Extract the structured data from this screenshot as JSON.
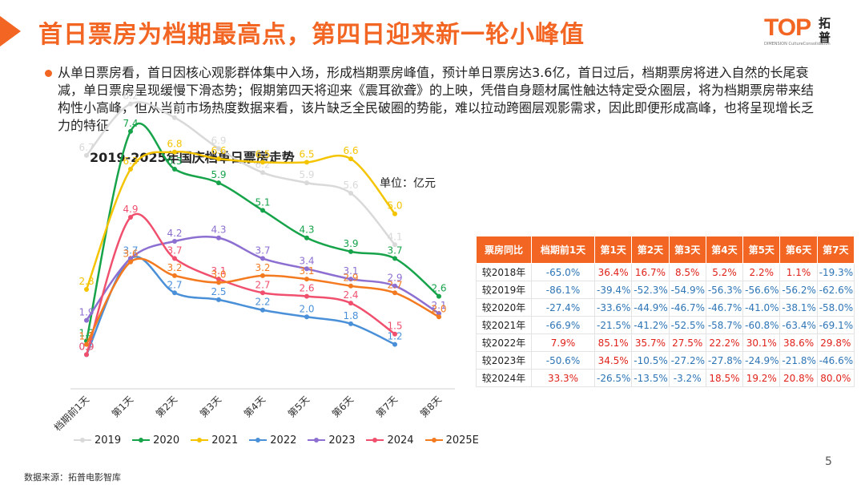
{
  "header": {
    "title": "首日票房为档期最高点，第四日迎来新一轮小峰值",
    "logo_text": "TOP",
    "logo_cn": "拓普",
    "logo_sub": "DIMENSION CultureConsolidation"
  },
  "summary": {
    "text": "从单日票房看，首日因核心观影群体集中入场，形成档期票房峰值，预计单日票房达3.6亿，首日过后，档期票房将进入自然的长尾衰减，单日票房呈现缓慢下滑态势；假期第四天将迎来《震耳欲聋》的上映，凭借自身题材属性触达特定受众圈层，将为档期票房带来结构性小高峰，但从当前市场热度数据来看，该片缺乏全民破圈的势能，难以拉动跨圈层观影需求，因此即便形成高峰，也将呈现增长乏力的特征"
  },
  "chart_data": {
    "type": "line",
    "title": "2019-2025年国庆档单日票房走势",
    "unit": "单位：亿元",
    "ylim": [
      0,
      9
    ],
    "grid": false,
    "legend_position": "bottom",
    "categories": [
      "档期前1天",
      "第1天",
      "第2天",
      "第3天",
      "第4天",
      "第5天",
      "第6天",
      "第7天",
      "第8天"
    ],
    "series": [
      {
        "name": "2019",
        "color": "#d9d9d9",
        "values": [
          6.7,
          8.2,
          7.8,
          6.9,
          6.2,
          5.9,
          5.6,
          4.1,
          null
        ],
        "labels": [
          "6.7",
          "8.2",
          "7.8",
          "6.9",
          "6.2",
          "5.9",
          "5.6",
          "4.1",
          ""
        ]
      },
      {
        "name": "2020",
        "color": "#16a34a",
        "values": [
          1.3,
          7.4,
          6.3,
          5.9,
          5.1,
          4.3,
          3.9,
          3.7,
          2.6
        ],
        "labels": [
          "1.3",
          "7.4",
          "6.3",
          "5.9",
          "5.1",
          "4.3",
          "3.9",
          "3.7",
          "2.6"
        ]
      },
      {
        "name": "2021",
        "color": "#f5c400",
        "values": [
          2.8,
          6.3,
          6.8,
          6.6,
          6.5,
          6.5,
          6.6,
          5.0,
          null
        ],
        "labels": [
          "2.8",
          "6.3",
          "6.8",
          "6.6",
          "6.5",
          "6.5",
          "6.6",
          "5.0",
          ""
        ]
      },
      {
        "name": "2022",
        "color": "#4a90d9",
        "values": [
          0.9,
          3.7,
          2.7,
          2.5,
          2.2,
          2.0,
          1.8,
          1.2,
          null
        ],
        "labels": [
          "0.9",
          "3.7",
          "2.7",
          "2.5",
          "2.2",
          "2.0",
          "1.8",
          "1.2",
          ""
        ]
      },
      {
        "name": "2023",
        "color": "#8c6fd1",
        "values": [
          1.9,
          3.7,
          4.2,
          4.3,
          3.7,
          3.4,
          3.1,
          2.9,
          2.1
        ],
        "labels": [
          "1.9",
          "",
          "4.2",
          "4.3",
          "3.7",
          "3.4",
          "3.1",
          "2.9",
          "2.1"
        ]
      },
      {
        "name": "2024",
        "color": "#f0506e",
        "values": [
          0.9,
          4.9,
          3.7,
          3.1,
          2.7,
          2.6,
          2.4,
          1.5,
          null
        ],
        "labels": [
          "0.9",
          "4.9",
          "3.7",
          "3.1",
          "2.7",
          "2.6",
          "2.4",
          "1.5",
          ""
        ]
      },
      {
        "name": "2025E",
        "color": "#f47a20",
        "values": [
          1.2,
          3.6,
          3.2,
          3.0,
          3.2,
          3.1,
          2.9,
          2.7,
          2.0
        ],
        "labels": [
          "1.2",
          "3.6",
          "3.2",
          "3.0",
          "3.2",
          "3.1",
          "2.9",
          "2.7",
          "2.0"
        ]
      }
    ]
  },
  "yoy_table": {
    "headers": [
      "票房同比",
      "档期前1天",
      "第1天",
      "第2天",
      "第3天",
      "第4天",
      "第5天",
      "第6天",
      "第7天"
    ],
    "rows": [
      {
        "label": "较2018年",
        "cells": [
          "-65.0%",
          "36.4%",
          "16.7%",
          "8.5%",
          "5.2%",
          "2.2%",
          "1.1%",
          "-19.3%"
        ]
      },
      {
        "label": "较2019年",
        "cells": [
          "-86.1%",
          "-39.4%",
          "-52.3%",
          "-54.9%",
          "-56.3%",
          "-56.6%",
          "-56.2%",
          "-62.6%"
        ]
      },
      {
        "label": "较2020年",
        "cells": [
          "-27.4%",
          "-33.6%",
          "-44.9%",
          "-46.7%",
          "-46.7%",
          "-41.0%",
          "-38.1%",
          "-58.0%"
        ]
      },
      {
        "label": "较2021年",
        "cells": [
          "-66.9%",
          "-21.5%",
          "-41.2%",
          "-52.5%",
          "-58.7%",
          "-60.8%",
          "-63.4%",
          "-69.1%"
        ]
      },
      {
        "label": "较2022年",
        "cells": [
          "7.9%",
          "85.1%",
          "35.7%",
          "27.5%",
          "22.2%",
          "30.1%",
          "38.6%",
          "29.8%"
        ]
      },
      {
        "label": "较2023年",
        "cells": [
          "-50.6%",
          "34.5%",
          "-10.5%",
          "-27.2%",
          "-27.8%",
          "-24.9%",
          "-21.8%",
          "-46.6%"
        ]
      },
      {
        "label": "较2024年",
        "cells": [
          "33.3%",
          "-26.5%",
          "-13.5%",
          "-3.2%",
          "18.5%",
          "19.2%",
          "20.8%",
          "80.0%"
        ]
      }
    ]
  },
  "footer": {
    "source": "数据来源：拓普电影智库",
    "page_number": "5"
  }
}
